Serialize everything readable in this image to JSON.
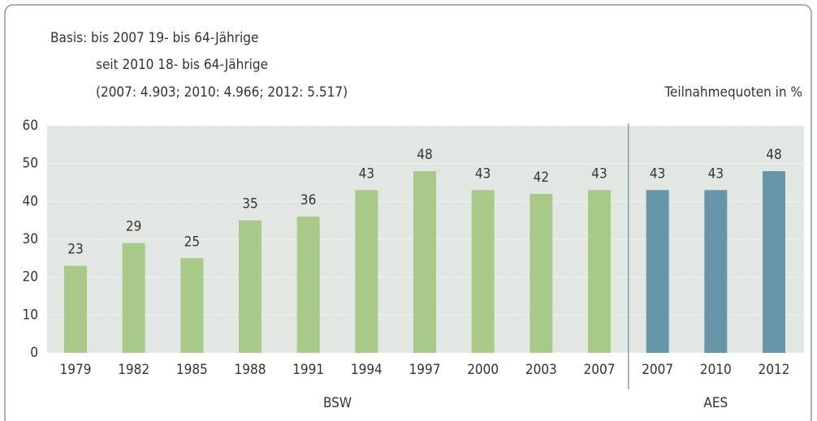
{
  "chart_data": {
    "type": "bar",
    "annotations": [
      "Basis: bis 2007 19- bis 64-Jährige",
      "seit 2010 18- bis 64-Jährige",
      "(2007: 4.903; 2010: 4.966; 2012: 5.517)"
    ],
    "y_label": "Teilnahmequoten in %",
    "categories": [
      "1979",
      "1982",
      "1985",
      "1988",
      "1991",
      "1994",
      "1997",
      "2000",
      "2003",
      "2007",
      "2007",
      "2010",
      "2012"
    ],
    "series": [
      {
        "name": "BSW",
        "color": "#a9c98b",
        "values": [
          23,
          29,
          25,
          35,
          36,
          43,
          48,
          43,
          42,
          43,
          null,
          null,
          null
        ]
      },
      {
        "name": "AES",
        "color": "#6796a9",
        "values": [
          null,
          null,
          null,
          null,
          null,
          null,
          null,
          null,
          null,
          null,
          43,
          43,
          48
        ]
      }
    ],
    "ylim": [
      0,
      60
    ],
    "yticks": [
      0,
      10,
      20,
      30,
      40,
      50,
      60
    ],
    "grid": true
  }
}
